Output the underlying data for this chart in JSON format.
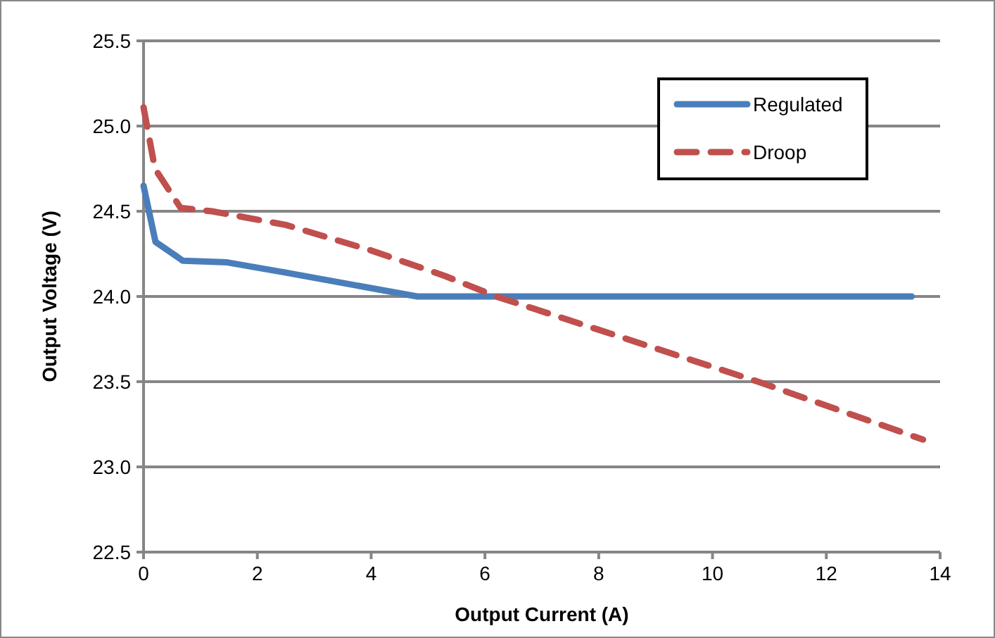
{
  "chart_data": {
    "type": "line",
    "xlabel": "Output Current (A)",
    "ylabel": "Output Voltage (V)",
    "xlim": [
      0,
      14
    ],
    "xticks": [
      0,
      2,
      4,
      6,
      8,
      10,
      12,
      14
    ],
    "ylim": [
      22.5,
      25.5
    ],
    "yticks": [
      {
        "value": 22.5,
        "label": "22.5"
      },
      {
        "value": 23,
        "label": "23.0"
      },
      {
        "value": 23.5,
        "label": "23.5"
      },
      {
        "value": 24,
        "label": "24.0"
      },
      {
        "value": 24.5,
        "label": "24.5"
      },
      {
        "value": 25,
        "label": "25.0"
      },
      {
        "value": 25.5,
        "label": "25.5"
      }
    ],
    "grid": "y",
    "legend": "top right",
    "marker": "none",
    "series": [
      {
        "name": "Regulated",
        "color": "#4a7ebb",
        "line_style": "solid",
        "x": [
          0,
          0.21,
          0.69,
          1.47,
          2.5,
          4.81,
          13.5
        ],
        "values": [
          24.65,
          24.32,
          24.21,
          24.2,
          24.14,
          24.0,
          24.0
        ]
      },
      {
        "name": "Droop",
        "color": "#c0504d",
        "line_style": "dashed",
        "x": [
          0,
          0.2,
          0.65,
          1.2,
          2.5,
          4,
          5.3,
          6.2,
          10.8,
          13.7
        ],
        "values": [
          25.11,
          24.75,
          24.52,
          24.5,
          24.42,
          24.27,
          24.12,
          24.0,
          23.5,
          23.16
        ]
      }
    ]
  }
}
